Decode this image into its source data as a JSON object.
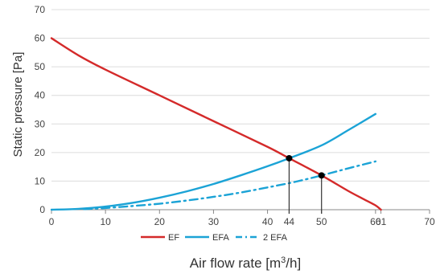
{
  "chart_data": {
    "type": "line",
    "xlabel": "Air flow rate [m³/h]",
    "xlabel_main": "Air flow rate [m",
    "xlabel_sup": "3",
    "xlabel_tail": "/h]",
    "ylabel": "Static pressure  [Pa]",
    "xlim": [
      0,
      70
    ],
    "ylim": [
      0,
      70
    ],
    "x_ticks": [
      0,
      10,
      20,
      30,
      40,
      44,
      50,
      60,
      61,
      70
    ],
    "y_ticks": [
      0,
      10,
      20,
      30,
      40,
      50,
      60,
      70
    ],
    "grid": "horizontal",
    "legend_position": "bottom",
    "series": [
      {
        "name": "EF",
        "color": "#d42a2a",
        "style": "solid",
        "x": [
          0,
          5,
          10,
          20,
          30,
          40,
          44,
          50,
          55,
          58,
          60,
          61
        ],
        "y": [
          60,
          54,
          49,
          40,
          31,
          22,
          18,
          12,
          6.5,
          3.5,
          1.5,
          0
        ]
      },
      {
        "name": "EFA",
        "color": "#1ba3d6",
        "style": "solid",
        "x": [
          0,
          5,
          10,
          15,
          20,
          25,
          30,
          35,
          40,
          44,
          50,
          55,
          60
        ],
        "y": [
          0,
          0.3,
          1.1,
          2.4,
          4.2,
          6.4,
          9.0,
          12.0,
          15.2,
          18.0,
          22.5,
          27.9,
          33.5
        ]
      },
      {
        "name": "2 EFA",
        "color": "#1ba3d6",
        "style": "dashdot",
        "x": [
          6,
          10,
          15,
          20,
          25,
          30,
          35,
          40,
          45,
          50,
          55,
          60
        ],
        "y": [
          0.2,
          0.6,
          1.3,
          2.1,
          3.2,
          4.5,
          6.0,
          7.8,
          9.7,
          12.0,
          14.5,
          16.9
        ]
      }
    ],
    "operating_points": [
      {
        "x": 44,
        "y": 18
      },
      {
        "x": 50,
        "y": 12
      }
    ]
  }
}
